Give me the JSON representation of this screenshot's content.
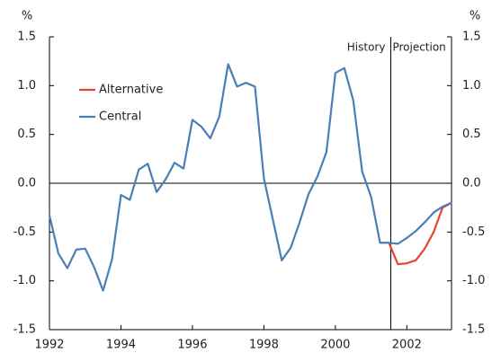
{
  "chart_data": {
    "type": "line",
    "x": [
      1992,
      1992.25,
      1992.5,
      1992.75,
      1993,
      1993.25,
      1993.5,
      1993.75,
      1994,
      1994.25,
      1994.5,
      1994.75,
      1995,
      1995.25,
      1995.5,
      1995.75,
      1996,
      1996.25,
      1996.5,
      1996.75,
      1997,
      1997.25,
      1997.5,
      1997.75,
      1998,
      1998.25,
      1998.5,
      1998.75,
      1999,
      1999.25,
      1999.5,
      1999.75,
      2000,
      2000.25,
      2000.5,
      2000.75,
      2001,
      2001.25,
      2001.5,
      2001.75,
      2002,
      2002.25,
      2002.5,
      2002.75,
      2003,
      2003.25
    ],
    "series": [
      {
        "name": "Alternative",
        "color": "#e8452c",
        "values": [
          null,
          null,
          null,
          null,
          null,
          null,
          null,
          null,
          null,
          null,
          null,
          null,
          null,
          null,
          null,
          null,
          null,
          null,
          null,
          null,
          null,
          null,
          null,
          null,
          null,
          null,
          null,
          null,
          null,
          null,
          null,
          null,
          null,
          null,
          null,
          null,
          null,
          null,
          -0.61,
          -0.83,
          -0.82,
          -0.79,
          -0.67,
          -0.5,
          -0.25,
          -0.2
        ]
      },
      {
        "name": "Central",
        "color": "#4a7fb5",
        "values": [
          -0.33,
          -0.72,
          -0.87,
          -0.68,
          -0.67,
          -0.86,
          -1.1,
          -0.78,
          -0.12,
          -0.17,
          0.14,
          0.2,
          -0.09,
          0.04,
          0.21,
          0.15,
          0.65,
          0.58,
          0.46,
          0.68,
          1.22,
          0.99,
          1.03,
          0.99,
          0.05,
          -0.37,
          -0.79,
          -0.66,
          -0.4,
          -0.11,
          0.07,
          0.32,
          1.13,
          1.18,
          0.85,
          0.12,
          -0.14,
          -0.61,
          -0.61,
          -0.62,
          -0.56,
          -0.49,
          -0.4,
          -0.3,
          -0.24,
          -0.2
        ]
      }
    ],
    "xlim": [
      1992,
      2003.25
    ],
    "xticks": [
      1992,
      1994,
      1996,
      1998,
      2000,
      2002
    ],
    "ylim": [
      -1.5,
      1.5
    ],
    "yticks": [
      {
        "value": -1.5,
        "label": "-1.5"
      },
      {
        "value": -1,
        "label": "-1.0"
      },
      {
        "value": -0.5,
        "label": "-0.5"
      },
      {
        "value": 0,
        "label": "0.0"
      },
      {
        "value": 0.5,
        "label": "0.5"
      },
      {
        "value": 1,
        "label": "1.0"
      },
      {
        "value": 1.5,
        "label": "1.5"
      }
    ],
    "y_unit": "%",
    "y2_unit": "%",
    "projection_start": 2001.55,
    "annotations": [
      "History",
      "Projection"
    ]
  }
}
